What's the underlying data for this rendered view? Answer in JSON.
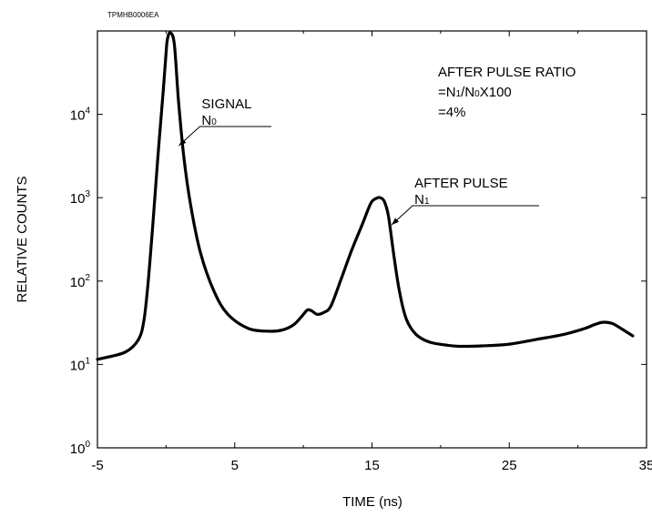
{
  "doc_id": "TPMHB0006EA",
  "chart_data": {
    "type": "line",
    "title": "",
    "xlabel": "TIME (ns)",
    "ylabel": "RELATIVE COUNTS",
    "xlim": [
      -5,
      35
    ],
    "ylim": [
      1,
      100000
    ],
    "y_scale": "log",
    "grid": false,
    "x_ticks": [
      {
        "value": -5,
        "label": "-5"
      },
      {
        "value": 5,
        "label": "5"
      },
      {
        "value": 15,
        "label": "15"
      },
      {
        "value": 25,
        "label": "25"
      },
      {
        "value": 35,
        "label": "35"
      }
    ],
    "y_ticks": [
      {
        "value": 1,
        "base": "10",
        "exp": "0"
      },
      {
        "value": 10,
        "base": "10",
        "exp": "1"
      },
      {
        "value": 100,
        "base": "10",
        "exp": "2"
      },
      {
        "value": 1000,
        "base": "10",
        "exp": "3"
      },
      {
        "value": 10000,
        "base": "10",
        "exp": "4"
      }
    ],
    "minor_x_ticks": [
      0,
      10,
      20,
      30
    ],
    "series": [
      {
        "color": "#000000",
        "x": [
          -5,
          -3,
          -2,
          -1.6,
          -1.3,
          -1,
          -0.6,
          -0.2,
          0,
          0.1,
          0.3,
          0.6,
          0.9,
          1.3,
          1.8,
          2.5,
          3.5,
          4.5,
          6,
          7.5,
          8.5,
          9.3,
          9.9,
          10.3,
          10.6,
          11,
          11.5,
          12,
          12.7,
          13.5,
          14.3,
          14.9,
          15.3,
          15.6,
          15.9,
          16.2,
          16.6,
          17,
          17.5,
          18.2,
          19.2,
          20.5,
          21.5,
          23,
          25,
          27,
          29,
          30.5,
          31.2,
          31.8,
          32.5,
          33.3,
          34
        ],
        "y": [
          11.5,
          14,
          20,
          35,
          100,
          400,
          3000,
          20000,
          55000,
          80000,
          95000,
          70000,
          15000,
          3000,
          800,
          220,
          75,
          40,
          27,
          25,
          26,
          30,
          38,
          45,
          44,
          40,
          42,
          50,
          100,
          230,
          480,
          850,
          980,
          1000,
          900,
          600,
          200,
          75,
          35,
          23,
          18.5,
          17,
          16.5,
          16.7,
          17.5,
          20,
          23,
          27,
          30,
          32,
          31,
          26,
          22
        ]
      }
    ],
    "annotations": [
      {
        "id": "signal",
        "line1": "SIGNAL",
        "line2_base": "N",
        "line2_sub": "0",
        "point_x": 0.8,
        "point_y": 4000
      },
      {
        "id": "afterpulse",
        "line1": "AFTER PULSE",
        "line2_base": "N",
        "line2_sub": "1",
        "point_x": 16.3,
        "point_y": 450
      }
    ],
    "ratio_text": {
      "line1": "AFTER PULSE RATIO",
      "line2_prefix": "=N",
      "line2_sub1": "1",
      "line2_mid": "/N",
      "line2_sub2": "0",
      "line2_suffix": "X100",
      "line3": "=4%"
    }
  }
}
